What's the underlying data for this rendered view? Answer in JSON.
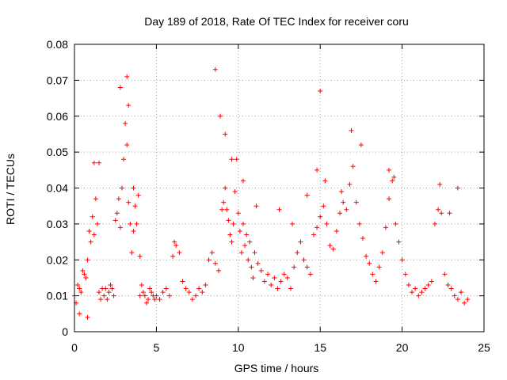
{
  "chart_data": {
    "type": "scatter",
    "title": "Day 189 of 2018, Rate Of TEC Index for receiver coru",
    "xlabel": "GPS time / hours",
    "ylabel": "ROTI / TECUs",
    "xlim": [
      0,
      25
    ],
    "ylim": [
      0,
      0.08
    ],
    "x_ticks": [
      "0",
      "5",
      "10",
      "15",
      "20",
      "25"
    ],
    "y_ticks": [
      "0",
      "0.01",
      "0.02",
      "0.03",
      "0.04",
      "0.05",
      "0.06",
      "0.07",
      "0.08"
    ],
    "grid": true,
    "marker": "plus",
    "color": "#ff0000",
    "series": [
      {
        "x": [
          0.0,
          0.1,
          0.2,
          0.3,
          0.4,
          0.5,
          0.6,
          0.7,
          0.8,
          0.9,
          1.0,
          1.1,
          1.2,
          1.3,
          1.4,
          1.5,
          1.6,
          1.7,
          1.8,
          1.9,
          2.0,
          2.1,
          2.2,
          2.3,
          2.4,
          2.5,
          2.6,
          2.7,
          2.8,
          2.9,
          3.0,
          3.1,
          3.2,
          3.3,
          3.4,
          3.5,
          3.6,
          3.7,
          3.8,
          3.9,
          4.0,
          4.1,
          4.2,
          4.3,
          4.4,
          4.5,
          4.6,
          4.7,
          4.8,
          4.9,
          5.0,
          5.2,
          5.4,
          5.6,
          5.8,
          6.0,
          6.2,
          6.4,
          6.6,
          6.8,
          7.0,
          7.2,
          7.4,
          7.6,
          7.8,
          8.0,
          8.2,
          8.4,
          8.6,
          8.8,
          9.0,
          9.1,
          9.2,
          9.3,
          9.4,
          9.5,
          9.6,
          9.7,
          9.8,
          9.9,
          10.0,
          10.1,
          10.2,
          10.3,
          10.4,
          10.5,
          10.6,
          10.7,
          10.8,
          10.9,
          11.0,
          11.2,
          11.4,
          11.6,
          11.8,
          12.0,
          12.2,
          12.4,
          12.6,
          12.8,
          13.0,
          13.2,
          13.4,
          13.6,
          13.8,
          14.0,
          14.2,
          14.4,
          14.6,
          14.8,
          15.0,
          15.2,
          15.4,
          15.6,
          15.8,
          16.0,
          16.2,
          16.4,
          16.6,
          16.8,
          17.0,
          17.2,
          17.4,
          17.6,
          17.8,
          18.0,
          18.2,
          18.4,
          18.6,
          18.8,
          19.0,
          19.2,
          19.4,
          19.6,
          19.8,
          20.0,
          20.2,
          20.4,
          20.6,
          20.8,
          21.0,
          21.2,
          21.4,
          21.6,
          21.8,
          22.0,
          22.2,
          22.4,
          22.6,
          22.8,
          23.0,
          23.2,
          23.4,
          23.6,
          23.8,
          24.0,
          0.3,
          0.8,
          1.2,
          1.5,
          2.8,
          3.2,
          3.3,
          3.6,
          4.0,
          6.1,
          8.6,
          8.9,
          9.2,
          9.6,
          10.3,
          11.1,
          12.5,
          13.3,
          14.2,
          14.8,
          15.0,
          15.3,
          16.3,
          16.9,
          17.5,
          19.2,
          19.5,
          22.3,
          22.9,
          23.4
        ],
        "y": [
          0.01,
          0.008,
          0.013,
          0.012,
          0.011,
          0.017,
          0.016,
          0.015,
          0.02,
          0.028,
          0.025,
          0.032,
          0.027,
          0.037,
          0.03,
          0.011,
          0.009,
          0.012,
          0.01,
          0.012,
          0.009,
          0.011,
          0.013,
          0.012,
          0.01,
          0.031,
          0.033,
          0.037,
          0.029,
          0.04,
          0.048,
          0.058,
          0.052,
          0.036,
          0.03,
          0.022,
          0.028,
          0.035,
          0.03,
          0.038,
          0.021,
          0.013,
          0.011,
          0.01,
          0.008,
          0.009,
          0.012,
          0.011,
          0.01,
          0.009,
          0.01,
          0.009,
          0.011,
          0.012,
          0.01,
          0.021,
          0.024,
          0.022,
          0.014,
          0.012,
          0.011,
          0.009,
          0.01,
          0.012,
          0.011,
          0.013,
          0.02,
          0.022,
          0.019,
          0.017,
          0.034,
          0.036,
          0.04,
          0.034,
          0.031,
          0.027,
          0.025,
          0.03,
          0.039,
          0.048,
          0.033,
          0.028,
          0.022,
          0.03,
          0.024,
          0.027,
          0.02,
          0.025,
          0.018,
          0.015,
          0.022,
          0.019,
          0.017,
          0.014,
          0.016,
          0.013,
          0.015,
          0.012,
          0.014,
          0.016,
          0.015,
          0.012,
          0.018,
          0.022,
          0.025,
          0.02,
          0.018,
          0.016,
          0.027,
          0.029,
          0.032,
          0.035,
          0.03,
          0.024,
          0.023,
          0.028,
          0.033,
          0.036,
          0.034,
          0.041,
          0.046,
          0.036,
          0.03,
          0.026,
          0.021,
          0.019,
          0.016,
          0.014,
          0.018,
          0.022,
          0.029,
          0.037,
          0.042,
          0.03,
          0.025,
          0.02,
          0.016,
          0.013,
          0.011,
          0.012,
          0.01,
          0.011,
          0.012,
          0.013,
          0.014,
          0.03,
          0.034,
          0.033,
          0.016,
          0.013,
          0.012,
          0.01,
          0.009,
          0.011,
          0.008,
          0.009,
          0.005,
          0.004,
          0.047,
          0.047,
          0.068,
          0.071,
          0.063,
          0.04,
          0.01,
          0.025,
          0.073,
          0.06,
          0.055,
          0.048,
          0.042,
          0.035,
          0.034,
          0.03,
          0.038,
          0.045,
          0.067,
          0.042,
          0.039,
          0.056,
          0.052,
          0.045,
          0.043,
          0.041,
          0.033,
          0.04
        ]
      }
    ]
  }
}
